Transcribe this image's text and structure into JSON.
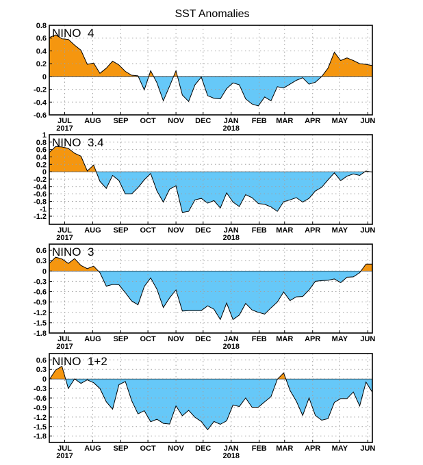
{
  "colors": {
    "positive": "#f5960f",
    "negative": "#66c8f8",
    "line": "#000000",
    "grid": "#a0a0a0"
  },
  "chart_data": {
    "type": "area",
    "title": "SST Anomalies",
    "grid": true,
    "x": [
      "2017-06-14",
      "2017-06-21",
      "2017-06-28",
      "2017-07-05",
      "2017-07-12",
      "2017-07-19",
      "2017-07-26",
      "2017-08-02",
      "2017-08-09",
      "2017-08-16",
      "2017-08-23",
      "2017-08-30",
      "2017-09-06",
      "2017-09-13",
      "2017-09-20",
      "2017-09-27",
      "2017-10-04",
      "2017-10-11",
      "2017-10-18",
      "2017-10-25",
      "2017-11-01",
      "2017-11-08",
      "2017-11-15",
      "2017-11-22",
      "2017-11-29",
      "2017-12-06",
      "2017-12-13",
      "2017-12-20",
      "2017-12-27",
      "2018-01-03",
      "2018-01-10",
      "2018-01-17",
      "2018-01-24",
      "2018-01-31",
      "2018-02-07",
      "2018-02-14",
      "2018-02-21",
      "2018-02-28",
      "2018-03-07",
      "2018-03-14",
      "2018-03-21",
      "2018-03-28",
      "2018-04-04",
      "2018-04-11",
      "2018-04-18",
      "2018-04-25",
      "2018-05-02",
      "2018-05-09",
      "2018-05-16",
      "2018-05-23",
      "2018-05-30",
      "2018-06-06"
    ],
    "xlim": [
      "2017-06-14",
      "2018-06-06"
    ],
    "month_ticks": [
      "JUL",
      "AUG",
      "SEP",
      "OCT",
      "NOV",
      "DEC",
      "JAN",
      "FEB",
      "MAR",
      "APR",
      "MAY",
      "JUN"
    ],
    "year_labels": [
      {
        "month": "JUL",
        "text": "2017"
      },
      {
        "month": "JAN",
        "text": "2018"
      }
    ],
    "panels": [
      {
        "name": "NINO  4",
        "ylim": [
          -0.6,
          0.8
        ],
        "yticks": [
          "-0.6",
          "-0.4",
          "-0.2",
          "0",
          "0.2",
          "0.4",
          "0.6",
          "0.8"
        ],
        "values": [
          0.61,
          0.65,
          0.59,
          0.58,
          0.49,
          0.41,
          0.19,
          0.21,
          0.05,
          0.13,
          0.24,
          0.18,
          0.08,
          0.02,
          0.01,
          -0.21,
          0.09,
          -0.1,
          -0.38,
          -0.15,
          0.09,
          -0.29,
          -0.39,
          -0.13,
          -0.01,
          -0.3,
          -0.34,
          -0.35,
          -0.19,
          -0.1,
          -0.13,
          -0.35,
          -0.43,
          -0.46,
          -0.32,
          -0.38,
          -0.16,
          -0.18,
          -0.12,
          -0.06,
          -0.02,
          -0.12,
          -0.09,
          0.0,
          0.13,
          0.38,
          0.25,
          0.29,
          0.25,
          0.2,
          0.19,
          0.17
        ]
      },
      {
        "name": "NINO  3.4",
        "ylim": [
          -1.42,
          1.0
        ],
        "yticks": [
          "-1.2",
          "-1",
          "-0.8",
          "-0.6",
          "-0.4",
          "-0.2",
          "0",
          "0.2",
          "0.4",
          "0.6",
          "0.8",
          "1"
        ],
        "values": [
          0.52,
          0.68,
          0.67,
          0.63,
          0.5,
          0.42,
          0.02,
          0.18,
          -0.26,
          -0.45,
          -0.1,
          -0.24,
          -0.6,
          -0.6,
          -0.43,
          -0.22,
          -0.05,
          -0.52,
          -0.82,
          -0.47,
          -0.38,
          -1.1,
          -1.07,
          -0.76,
          -0.72,
          -0.85,
          -0.78,
          -0.98,
          -0.57,
          -0.82,
          -0.94,
          -0.62,
          -0.7,
          -0.86,
          -0.88,
          -0.95,
          -1.07,
          -0.81,
          -0.76,
          -0.7,
          -0.82,
          -0.72,
          -0.52,
          -0.42,
          -0.22,
          -0.03,
          -0.24,
          -0.12,
          -0.06,
          -0.1,
          0.02,
          -0.01
        ]
      },
      {
        "name": "NINO  3",
        "ylim": [
          -1.8,
          0.78
        ],
        "yticks": [
          "-1.8",
          "-1.5",
          "-1.2",
          "-0.9",
          "-0.6",
          "-0.3",
          "0",
          "0.3",
          "0.6"
        ],
        "values": [
          0.22,
          0.4,
          0.35,
          0.22,
          0.36,
          0.16,
          0.07,
          0.14,
          -0.05,
          -0.44,
          -0.39,
          -0.4,
          -0.63,
          -0.87,
          -0.98,
          -0.45,
          -0.2,
          -0.53,
          -1.06,
          -0.78,
          -0.55,
          -1.16,
          -1.15,
          -1.15,
          -1.15,
          -1.01,
          -1.11,
          -1.41,
          -0.93,
          -1.41,
          -1.28,
          -0.94,
          -1.13,
          -1.2,
          -1.25,
          -1.07,
          -0.9,
          -0.61,
          -0.86,
          -0.75,
          -0.74,
          -0.55,
          -0.3,
          -0.28,
          -0.27,
          -0.23,
          -0.34,
          -0.18,
          -0.17,
          -0.05,
          0.2,
          0.2
        ]
      },
      {
        "name": "NINO  1+2",
        "ylim": [
          -2.0,
          0.8
        ],
        "yticks": [
          "-1.8",
          "-1.5",
          "-1.2",
          "-0.9",
          "-0.6",
          "-0.3",
          "0",
          "0.3",
          "0.6"
        ],
        "values": [
          -0.02,
          0.28,
          0.4,
          -0.3,
          0.0,
          -0.14,
          -0.03,
          -0.12,
          -0.3,
          -0.72,
          -0.95,
          -0.18,
          -0.08,
          -0.68,
          -1.1,
          -1.0,
          -1.35,
          -1.27,
          -1.4,
          -1.42,
          -0.85,
          -1.16,
          -0.99,
          -1.21,
          -1.34,
          -1.6,
          -1.34,
          -1.43,
          -1.32,
          -0.82,
          -0.87,
          -0.6,
          -0.89,
          -0.89,
          -0.72,
          -0.56,
          -0.01,
          0.19,
          -0.36,
          -0.7,
          -1.15,
          -0.6,
          -1.15,
          -1.3,
          -1.25,
          -0.74,
          -0.62,
          -0.62,
          -0.41,
          -0.85,
          -0.1,
          -0.42
        ]
      }
    ]
  }
}
